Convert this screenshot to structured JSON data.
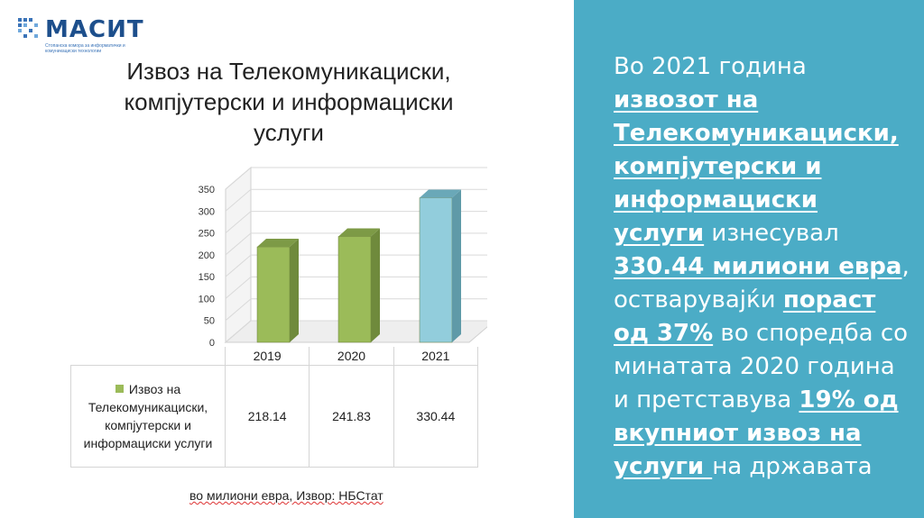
{
  "logo": {
    "name": "МАСИТ",
    "subtitle": "Стопанска комора за информатички и комуникациски технологии"
  },
  "chart_data": {
    "type": "bar",
    "title": "Извоз на Телекомуникациски, компјутерски и информациски услуги",
    "categories": [
      "2019",
      "2020",
      "2021"
    ],
    "series": [
      {
        "name": "Извоз на Телекомуникациски, компјутерски и информациски услуги",
        "values": [
          218.14,
          241.83,
          330.44
        ]
      }
    ],
    "value_labels": [
      "218.14",
      "241.83",
      "330.44"
    ],
    "highlight_category": "2021",
    "ylim": [
      0,
      350
    ],
    "yticks": [
      0,
      50,
      100,
      150,
      200,
      250,
      300,
      350
    ],
    "grid": true,
    "legend": "table-left",
    "colors": {
      "bar": "#9bbb59",
      "bar_highlight": "#92cddc"
    }
  },
  "source_note": "во милиони евра, Извор: НБСтат",
  "panel": {
    "t1": "Во 2021 година ",
    "h1": "извозот на Телекомуникациски, компјутерски и информациски услуги",
    "t2": " изнесувал ",
    "h2": "330.44 милиони евра",
    "t3": ", остварувајќи ",
    "h3": "пораст од 37%",
    "t4": " во споредба со минатата 2020 година и претставува ",
    "h4": "19% од вкупниот извоз на услуги ",
    "t5": "на државата",
    "background": "#4bacc6"
  }
}
